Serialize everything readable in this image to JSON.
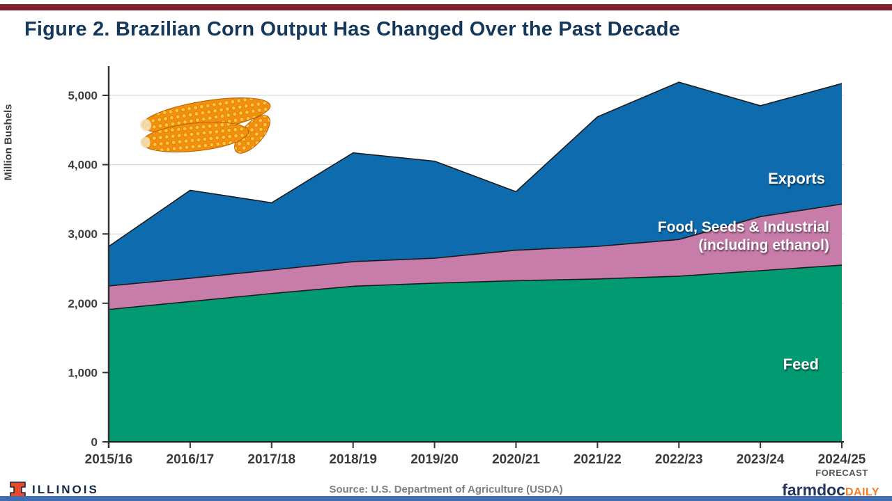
{
  "page": {
    "title": "Figure 2. Brazilian Corn Output Has Changed Over the Past Decade"
  },
  "chart_data": {
    "type": "area",
    "stacked": true,
    "title": "Figure 2. Brazilian Corn Output Has Changed Over the Past Decade",
    "xlabel": "",
    "ylabel": "Million Bushels",
    "ylim": [
      0,
      5400
    ],
    "yticks": [
      0,
      1000,
      2000,
      3000,
      4000,
      5000
    ],
    "ytick_labels": [
      "0",
      "1,000",
      "2,000",
      "3,000",
      "4,000",
      "5,000"
    ],
    "grid": "horizontal",
    "legend": "labels drawn inside areas",
    "categories": [
      "2015/16",
      "2016/17",
      "2017/18",
      "2018/19",
      "2019/20",
      "2020/21",
      "2021/22",
      "2022/23",
      "2023/24",
      "2024/25"
    ],
    "series": [
      {
        "name": "Feed",
        "color": "#029A71",
        "values": [
          1910,
          2025,
          2140,
          2245,
          2290,
          2325,
          2350,
          2390,
          2470,
          2550
        ]
      },
      {
        "name": "Food, Seeds & Industrial (including ethanol)",
        "color": "#C77CA9",
        "values": [
          340,
          335,
          340,
          355,
          360,
          440,
          470,
          530,
          780,
          880
        ]
      },
      {
        "name": "Exports",
        "color": "#0E6BAD",
        "values": [
          570,
          1270,
          970,
          1570,
          1400,
          845,
          1870,
          2270,
          1600,
          1740
        ]
      }
    ],
    "stacked_totals": [
      2820,
      3630,
      3450,
      4170,
      4050,
      3610,
      4690,
      5190,
      4850,
      5170
    ],
    "last_category_note": "FORECAST"
  },
  "annotations": {
    "exports": "Exports",
    "fsi_line1": "Food, Seeds & Industrial",
    "fsi_line2": "(including ethanol)",
    "feed": "Feed"
  },
  "footer": {
    "illinois_wordmark": "ILLINOIS",
    "source": "Source: U.S. Department of Agriculture (USDA)",
    "farmdoc": "farmdoc",
    "daily": "DAILY"
  },
  "colors": {
    "top_accent_bar": "#7E1F2E",
    "bottom_accent_bar": "#3E6DB4",
    "title_navy": "#14375C",
    "feed_green": "#029A71",
    "fsi_pink": "#C77CA9",
    "exports_blue": "#0E6BAD",
    "axis_gray": "#3d3d3d",
    "gridline_gray": "#DADADA",
    "illinois_orange": "#E84A27",
    "logo_navy": "#13294B",
    "daily_orange": "#F47B20"
  }
}
